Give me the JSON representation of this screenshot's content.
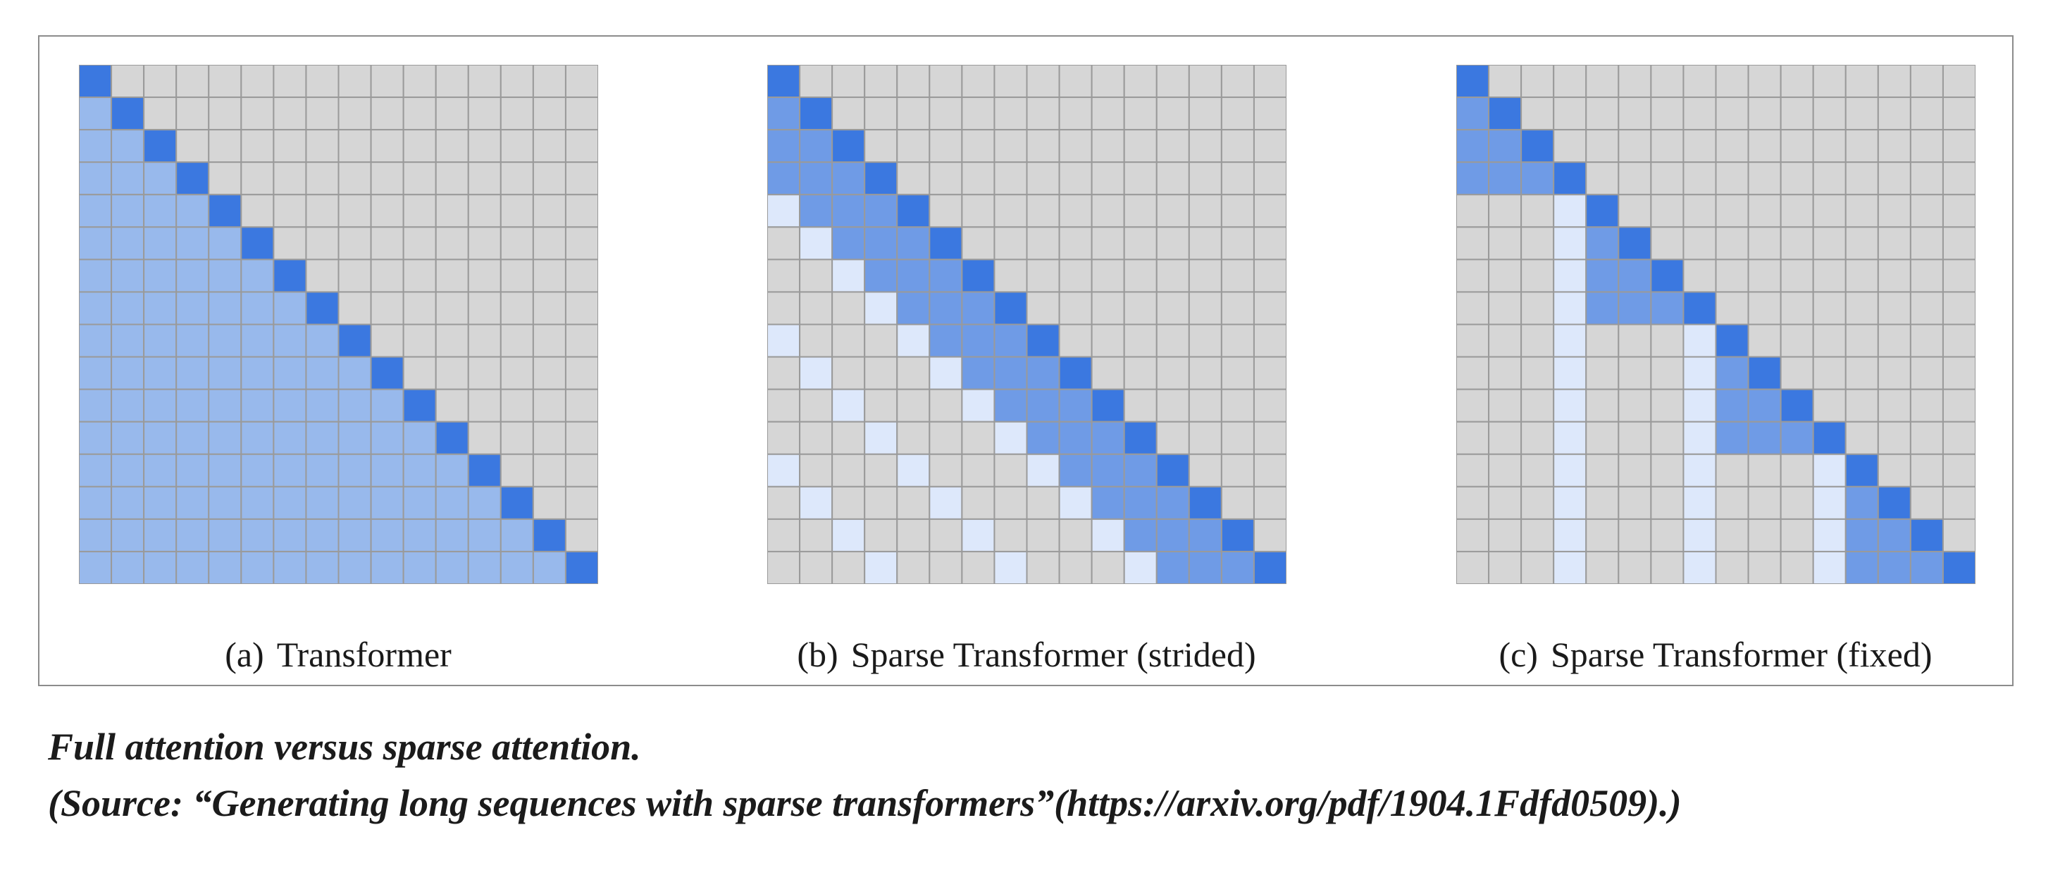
{
  "figure": {
    "panels": [
      {
        "id": "a",
        "label": "(a)",
        "title": "Transformer",
        "pattern": "full"
      },
      {
        "id": "b",
        "label": "(b)",
        "title": "Sparse Transformer (strided)",
        "pattern": "strided"
      },
      {
        "id": "c",
        "label": "(c)",
        "title": "Sparse Transformer (fixed)",
        "pattern": "fixed"
      }
    ],
    "grid_size": 16,
    "stride": 4,
    "colors": {
      "diagonal": "#3b78e0",
      "full_attended": "#98b9ec",
      "local_attended": "#6f9be6",
      "summary_attended": "#dde8fb",
      "empty": "#d6d6d6",
      "gridline": "#9a9a9a"
    }
  },
  "caption": {
    "line1": "Full attention versus sparse attention.",
    "line2": "(Source: “Generating long sequences with sparse transformers”(https://arxiv.org/pdf/1904.1Fdfd0509).)"
  }
}
